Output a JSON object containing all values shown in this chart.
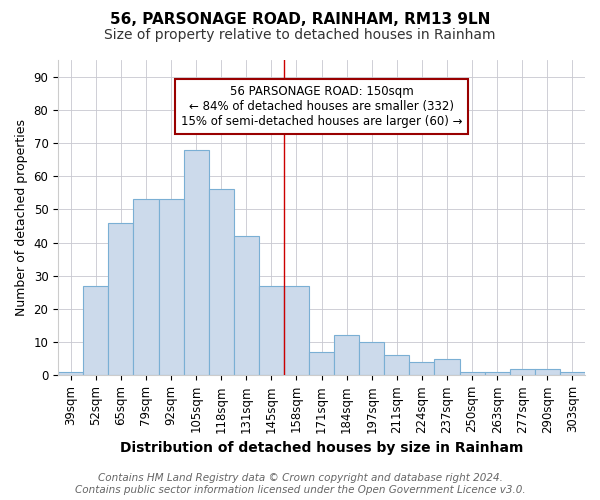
{
  "title1": "56, PARSONAGE ROAD, RAINHAM, RM13 9LN",
  "title2": "Size of property relative to detached houses in Rainham",
  "xlabel": "Distribution of detached houses by size in Rainham",
  "ylabel": "Number of detached properties",
  "categories": [
    "39sqm",
    "52sqm",
    "65sqm",
    "79sqm",
    "92sqm",
    "105sqm",
    "118sqm",
    "131sqm",
    "145sqm",
    "158sqm",
    "171sqm",
    "184sqm",
    "197sqm",
    "211sqm",
    "224sqm",
    "237sqm",
    "250sqm",
    "263sqm",
    "277sqm",
    "290sqm",
    "303sqm"
  ],
  "values": [
    1,
    27,
    46,
    53,
    53,
    68,
    56,
    42,
    27,
    27,
    7,
    12,
    10,
    6,
    4,
    5,
    1,
    1,
    2,
    2,
    1
  ],
  "bar_color": "#ccdaeb",
  "bar_edge_color": "#7aafd4",
  "grid_color": "#c8c8d0",
  "vline_color": "#cc0000",
  "annotation_text": "56 PARSONAGE ROAD: 150sqm\n← 84% of detached houses are smaller (332)\n15% of semi-detached houses are larger (60) →",
  "annotation_box_color": "white",
  "annotation_box_edge_color": "#990000",
  "ylim": [
    0,
    95
  ],
  "yticks": [
    0,
    10,
    20,
    30,
    40,
    50,
    60,
    70,
    80,
    90
  ],
  "footnote": "Contains HM Land Registry data © Crown copyright and database right 2024.\nContains public sector information licensed under the Open Government Licence v3.0.",
  "title1_fontsize": 11,
  "title2_fontsize": 10,
  "xlabel_fontsize": 10,
  "ylabel_fontsize": 9,
  "tick_fontsize": 8.5,
  "annot_fontsize": 8.5,
  "footnote_fontsize": 7.5,
  "background_color": "#ffffff"
}
